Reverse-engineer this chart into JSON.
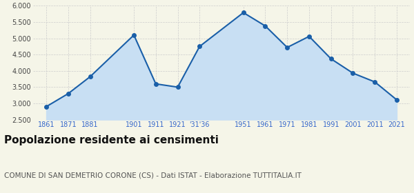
{
  "x_labels": [
    "1861",
    "1871",
    "1881",
    "",
    "1901",
    "1911",
    "1921",
    "'31'36",
    "",
    "1951",
    "1961",
    "1971",
    "1981",
    "1991",
    "2001",
    "2011",
    "2021"
  ],
  "x_years": [
    1861,
    1871,
    1881,
    1891,
    1901,
    1911,
    1921,
    1931,
    1936,
    1951,
    1961,
    1971,
    1981,
    1991,
    2001,
    2011,
    2021
  ],
  "data_years": [
    1861,
    1871,
    1881,
    1901,
    1911,
    1921,
    1931,
    1951,
    1961,
    1971,
    1981,
    1991,
    2001,
    2011,
    2021
  ],
  "y_values": [
    2900,
    3300,
    3820,
    5100,
    3600,
    3500,
    4750,
    5790,
    5380,
    4720,
    5060,
    4370,
    3930,
    3660,
    3110
  ],
  "ylim": [
    2500,
    6000
  ],
  "yticks": [
    2500,
    3000,
    3500,
    4000,
    4500,
    5000,
    5500,
    6000
  ],
  "line_color": "#1a5fa8",
  "fill_color": "#c8dff3",
  "marker_color": "#1a5fa8",
  "background_color": "#f5f5e8",
  "grid_color": "#cccccc",
  "xlabel_color": "#3366cc",
  "title": "Popolazione residente ai censimenti",
  "subtitle": "COMUNE DI SAN DEMETRIO CORONE (CS) - Dati ISTAT - Elaborazione TUTTITALIA.IT",
  "title_fontsize": 11,
  "subtitle_fontsize": 7.5
}
